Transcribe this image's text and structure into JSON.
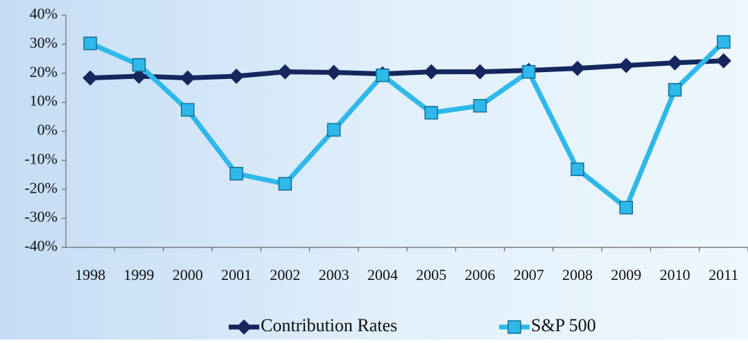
{
  "chart_data": {
    "type": "line",
    "categories": [
      "1998",
      "1999",
      "2000",
      "2001",
      "2002",
      "2003",
      "2004",
      "2005",
      "2006",
      "2007",
      "2008",
      "2009",
      "2010",
      "2011"
    ],
    "series": [
      {
        "name": "Contribution Rates",
        "color": "#15275e",
        "marker": "diamond",
        "values": [
          18.4,
          19,
          18.4,
          19,
          20.5,
          20.3,
          19.8,
          20.5,
          20.5,
          21,
          21.7,
          22.7,
          23.6,
          24.3
        ]
      },
      {
        "name": "S&P 500",
        "color": "#2fb8ea",
        "marker": "square",
        "values": [
          30.3,
          22.9,
          7.4,
          -14.6,
          -18.1,
          0.5,
          19.3,
          6.4,
          8.8,
          20.5,
          -13.1,
          -26.3,
          14.3,
          30.8
        ]
      }
    ],
    "ylim": [
      -40,
      40
    ],
    "yticks": [
      {
        "value": -40,
        "label": "-40%"
      },
      {
        "value": -30,
        "label": "-30%"
      },
      {
        "value": -20,
        "label": "-20%"
      },
      {
        "value": -10,
        "label": "-10%"
      },
      {
        "value": 0,
        "label": "0%"
      },
      {
        "value": 10,
        "label": "10%"
      },
      {
        "value": 20,
        "label": "20%"
      },
      {
        "value": 30,
        "label": "30%"
      },
      {
        "value": 40,
        "label": "40%"
      }
    ],
    "grid": false,
    "legend": "bottom"
  }
}
